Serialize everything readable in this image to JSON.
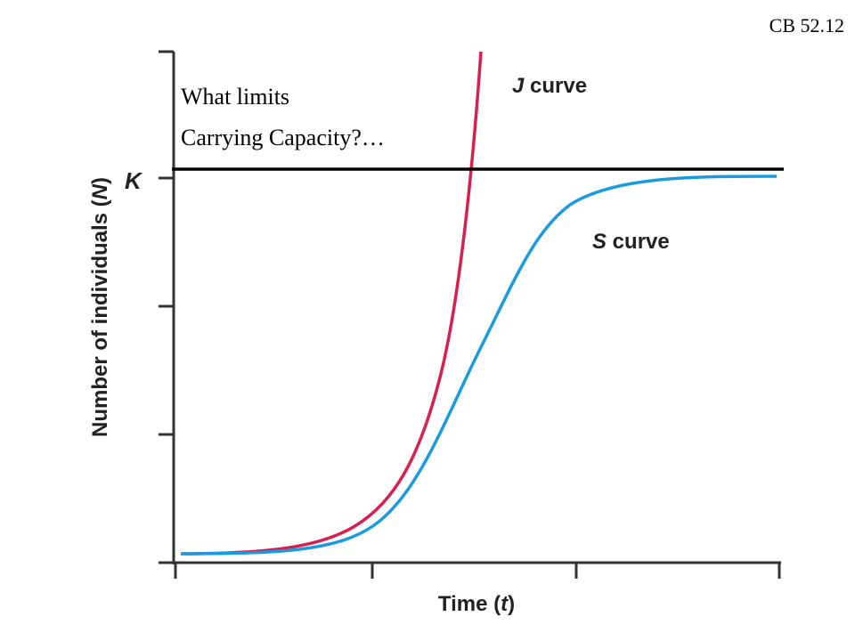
{
  "slide_ref": "CB 52.12",
  "question": {
    "line1": "What limits",
    "line2": "Carrying Capacity?…"
  },
  "j_curve_label": {
    "italic": "J",
    "rest": " curve"
  },
  "s_curve_label": {
    "italic": "S",
    "rest": " curve"
  },
  "k_label": "K",
  "y_axis_label": {
    "before": "Number of individuals (",
    "italic": "N",
    "after": ")"
  },
  "x_axis_label": {
    "before": "Time (",
    "italic": "t",
    "after": ")"
  }
}
